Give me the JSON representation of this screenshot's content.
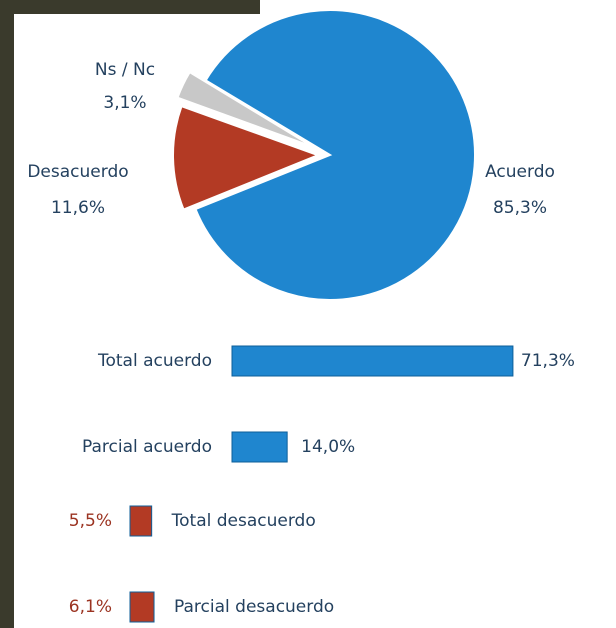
{
  "chart_data": [
    {
      "type": "pie",
      "categories": [
        "Acuerdo",
        "Desacuerdo",
        "Ns / Nc"
      ],
      "values": [
        85.3,
        11.6,
        3.1
      ],
      "value_labels": [
        "85,3%",
        "11,6%",
        "3,1%"
      ],
      "colors": [
        "#1f86cf",
        "#b33a24",
        "#c8c8c8"
      ]
    },
    {
      "type": "bar",
      "categories": [
        "Total acuerdo",
        "Parcial acuerdo",
        "Total desacuerdo",
        "Parcial desacuerdo"
      ],
      "values": [
        71.3,
        14.0,
        5.5,
        6.1
      ],
      "value_labels": [
        "71,3%",
        "14,0%",
        "5,5%",
        "6,1%"
      ],
      "colors": [
        "#1f86cf",
        "#1f86cf",
        "#b33a24",
        "#b33a24"
      ]
    }
  ]
}
